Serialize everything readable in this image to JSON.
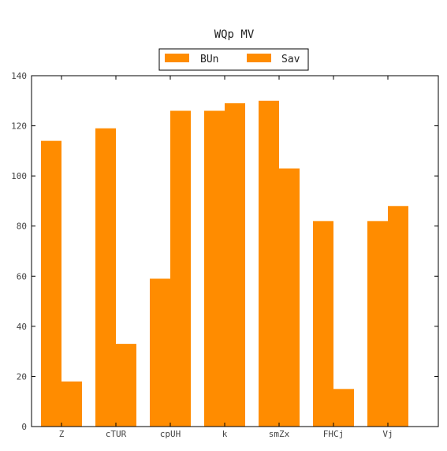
{
  "chart_data": {
    "type": "bar",
    "title": "WQp MV",
    "xlabel": "",
    "ylabel": "",
    "categories": [
      "Z",
      "cTUR",
      "cpUH",
      "k",
      "smZx",
      "FHCj",
      "Vj"
    ],
    "series": [
      {
        "name": "BUn",
        "values": [
          114,
          119,
          59,
          126,
          130,
          82,
          82
        ]
      },
      {
        "name": "Sav",
        "values": [
          18,
          33,
          126,
          129,
          103,
          15,
          88
        ]
      }
    ],
    "ylim": [
      0,
      140
    ],
    "yticks": [
      0,
      20,
      40,
      60,
      80,
      100,
      120,
      140
    ],
    "legend_position": "top-center",
    "grid": false,
    "colors": {
      "series": "#ff8c00",
      "axis": "#000000"
    }
  }
}
